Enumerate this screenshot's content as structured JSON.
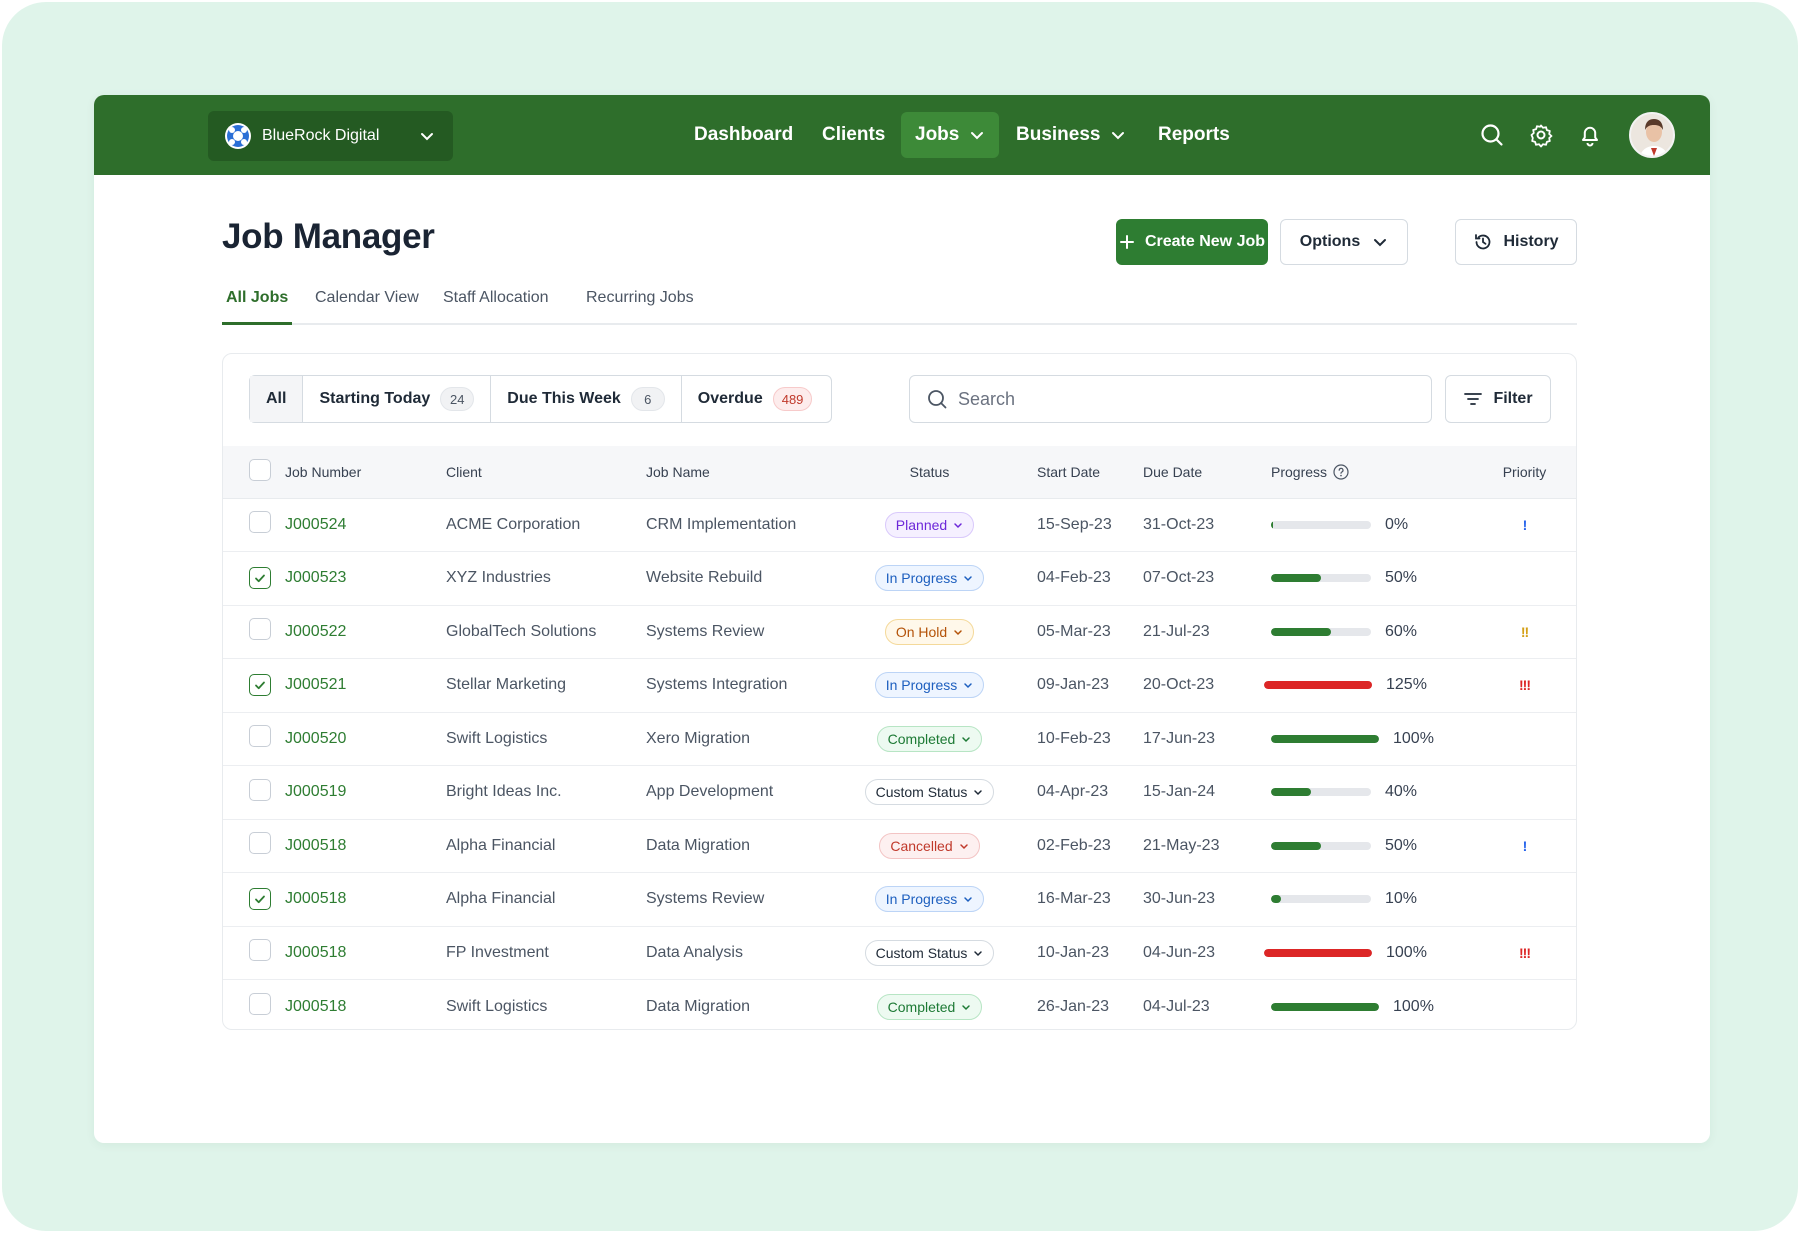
{
  "topbar": {
    "org_name": "BlueRock Digital",
    "nav": [
      {
        "label": "Dashboard"
      },
      {
        "label": "Clients"
      },
      {
        "label": "Jobs"
      },
      {
        "label": "Business"
      },
      {
        "label": "Reports"
      }
    ],
    "active_nav": "Jobs",
    "brand_color": "#2e6e2b"
  },
  "page": {
    "title": "Job Manager",
    "create_label": "Create New Job",
    "options_label": "Options",
    "history_label": "History"
  },
  "tabs": [
    {
      "label": "All Jobs",
      "active": true
    },
    {
      "label": "Calendar View",
      "active": false
    },
    {
      "label": "Staff Allocation",
      "active": false
    },
    {
      "label": "Recurring Jobs",
      "active": false
    }
  ],
  "filters": {
    "segments": [
      {
        "label": "All",
        "count": ""
      },
      {
        "label": "Starting Today",
        "count": "24"
      },
      {
        "label": "Due This Week",
        "count": "6"
      },
      {
        "label": "Overdue",
        "count": "489"
      }
    ],
    "search_placeholder": "Search",
    "filter_label": "Filter"
  },
  "table": {
    "columns": [
      "Job Number",
      "Client",
      "Job Name",
      "Status",
      "Start Date",
      "Due Date",
      "Progress",
      "Priority"
    ],
    "rows": [
      {
        "checked": false,
        "job": "J000524",
        "client": "ACME Corporation",
        "name": "CRM Implementation",
        "status": "Planned",
        "status_type": "planned",
        "start": "15-Sep-23",
        "due": "31-Oct-23",
        "progress": 0,
        "progress_label": "0%",
        "priority": "!",
        "priority_color": "blue"
      },
      {
        "checked": true,
        "job": "J000523",
        "client": "XYZ Industries",
        "name": "Website Rebuild",
        "status": "In Progress",
        "status_type": "progress",
        "start": "04-Feb-23",
        "due": "07-Oct-23",
        "progress": 50,
        "progress_label": "50%",
        "priority": "",
        "priority_color": ""
      },
      {
        "checked": false,
        "job": "J000522",
        "client": "GlobalTech Solutions",
        "name": "Systems Review",
        "status": "On Hold",
        "status_type": "hold",
        "start": "05-Mar-23",
        "due": "21-Jul-23",
        "progress": 60,
        "progress_label": "60%",
        "priority": "!!",
        "priority_color": "yellow"
      },
      {
        "checked": true,
        "job": "J000521",
        "client": "Stellar Marketing",
        "name": "Systems Integration",
        "status": "In Progress",
        "status_type": "progress",
        "start": "09-Jan-23",
        "due": "20-Oct-23",
        "progress": 125,
        "progress_label": "125%",
        "priority": "!!!",
        "priority_color": "red"
      },
      {
        "checked": false,
        "job": "J000520",
        "client": "Swift Logistics",
        "name": "Xero Migration",
        "status": "Completed",
        "status_type": "completed",
        "start": "10-Feb-23",
        "due": "17-Jun-23",
        "progress": 100,
        "progress_label": "100%",
        "priority": "",
        "priority_color": ""
      },
      {
        "checked": false,
        "job": "J000519",
        "client": "Bright Ideas Inc.",
        "name": "App Development",
        "status": "Custom Status",
        "status_type": "custom",
        "start": "04-Apr-23",
        "due": "15-Jan-24",
        "progress": 40,
        "progress_label": "40%",
        "priority": "",
        "priority_color": ""
      },
      {
        "checked": false,
        "job": "J000518",
        "client": "Alpha Financial",
        "name": "Data Migration",
        "status": "Cancelled",
        "status_type": "cancelled",
        "start": "02-Feb-23",
        "due": "21-May-23",
        "progress": 50,
        "progress_label": "50%",
        "priority": "!",
        "priority_color": "blue"
      },
      {
        "checked": true,
        "job": "J000518",
        "client": "Alpha Financial",
        "name": "Systems Review",
        "status": "In Progress",
        "status_type": "progress",
        "start": "16-Mar-23",
        "due": "30-Jun-23",
        "progress": 10,
        "progress_label": "10%",
        "priority": "",
        "priority_color": ""
      },
      {
        "checked": false,
        "job": "J000518",
        "client": "FP Investment",
        "name": "Data Analysis",
        "status": "Custom Status",
        "status_type": "custom",
        "start": "10-Jan-23",
        "due": "04-Jun-23",
        "progress": 100,
        "progress_label": "100%",
        "over": true,
        "priority": "!!!",
        "priority_color": "red"
      },
      {
        "checked": false,
        "job": "J000518",
        "client": "Swift Logistics",
        "name": "Data Migration",
        "status": "Completed",
        "status_type": "completed",
        "start": "26-Jan-23",
        "due": "04-Jul-23",
        "progress": 100,
        "progress_label": "100%",
        "priority": "",
        "priority_color": ""
      }
    ]
  }
}
